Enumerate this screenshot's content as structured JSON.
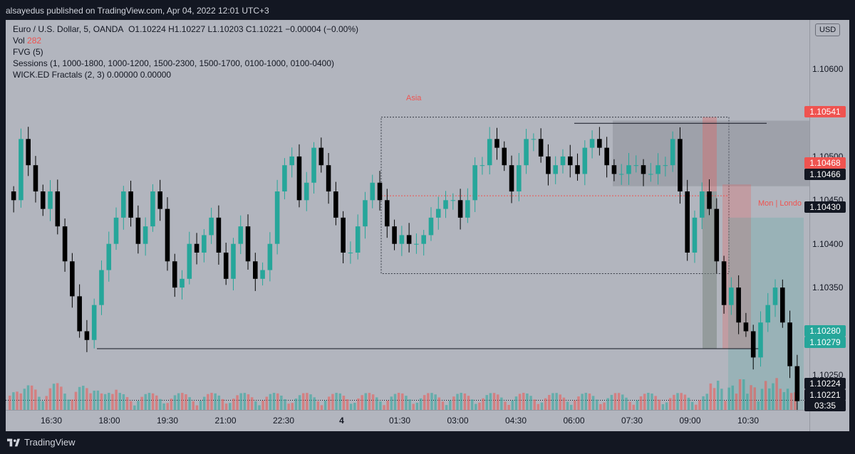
{
  "header": {
    "published": "alsayedus published on TradingView.com, Apr 04, 2022 12:01 UTC+3"
  },
  "legend": {
    "symbol": "Euro / U.S. Dollar, 5, OANDA",
    "ohlc": "O1.10224 H1.10227 L1.10203 C1.10221 −0.00004 (−0.00%)",
    "vol_label": "Vol",
    "vol_value": "282",
    "fvg": "FVG (5)",
    "sessions": "Sessions (1, 1000-1800, 1000-1200, 1500-2300, 1500-1700, 0100-1000, 0100-0400)",
    "fractals": "WICK.ED Fractals (2, 3)  0.00000  0.00000"
  },
  "currency_button": "USD",
  "session_labels": {
    "asia": "Asia",
    "london": "Mon | Londo"
  },
  "footer": {
    "brand": "TradingView"
  },
  "colors": {
    "up": "#26a69a",
    "down": "#000000",
    "tag_red": "#ef5350",
    "tag_black": "#131722",
    "tag_green": "#26a69a",
    "bg": "#b2b5be"
  },
  "chart_data": {
    "type": "candlestick",
    "symbol": "EURUSD",
    "timeframe": "5",
    "y_ticks": [
      "1.10600",
      "1.10550",
      "1.10500",
      "1.10450",
      "1.10400",
      "1.10350",
      "1.10300",
      "1.10250"
    ],
    "x_ticks": [
      "16:30",
      "18:00",
      "19:30",
      "21:00",
      "22:30",
      "4",
      "01:30",
      "03:00",
      "04:30",
      "06:00",
      "07:30",
      "09:00",
      "10:30"
    ],
    "ylim": [
      1.1021,
      1.1064
    ],
    "price_tags": [
      {
        "value": "1.10541",
        "style": "red"
      },
      {
        "value": "1.10468",
        "style": "red"
      },
      {
        "value": "1.10466",
        "style": "black"
      },
      {
        "value": "1.10430",
        "style": "black"
      },
      {
        "value": "1.10280",
        "style": "green"
      },
      {
        "value": "1.10279",
        "style": "green"
      },
      {
        "value": "1.10224",
        "style": "black"
      },
      {
        "value": "1.10221",
        "style": "black"
      },
      {
        "value": "03:35",
        "style": "black"
      }
    ],
    "key_levels": [
      1.10541,
      1.10468,
      1.1043,
      1.1028,
      1.10221
    ],
    "asia_box": {
      "high": 1.10545,
      "low": 1.10366
    },
    "close_path": [
      1.1045,
      1.1052,
      1.1049,
      1.1046,
      1.1044,
      1.1046,
      1.1042,
      1.1038,
      1.1034,
      1.103,
      1.1029,
      1.1033,
      1.1037,
      1.104,
      1.1043,
      1.1046,
      1.1043,
      1.104,
      1.1042,
      1.1046,
      1.1044,
      1.1038,
      1.1035,
      1.1036,
      1.104,
      1.1039,
      1.1041,
      1.1043,
      1.1039,
      1.1036,
      1.104,
      1.1042,
      1.1038,
      1.1036,
      1.1037,
      1.104,
      1.1046,
      1.1049,
      1.105,
      1.1045,
      1.1047,
      1.1051,
      1.1049,
      1.1046,
      1.1043,
      1.1039,
      1.1039,
      1.1042,
      1.1045,
      1.1047,
      1.1045,
      1.1042,
      1.104,
      1.1041,
      1.104,
      1.104,
      1.1041,
      1.1043,
      1.1044,
      1.1045,
      1.1045,
      1.1043,
      1.1045,
      1.1049,
      1.1049,
      1.1052,
      1.1051,
      1.1049,
      1.1046,
      1.1049,
      1.1052,
      1.1052,
      1.105,
      1.1048,
      1.1049,
      1.105,
      1.1049,
      1.1048,
      1.1051,
      1.1052,
      1.1051,
      1.1049,
      1.1048,
      1.1048,
      1.1049,
      1.1049,
      1.1048,
      1.1048,
      1.1049,
      1.1049,
      1.1052,
      1.1046,
      1.1039,
      1.1043,
      1.1046,
      1.1044,
      1.1038,
      1.1033,
      1.1035,
      1.1031,
      1.103,
      1.1027,
      1.1031,
      1.1033,
      1.1035,
      1.1031,
      1.1026,
      1.1022
    ]
  }
}
